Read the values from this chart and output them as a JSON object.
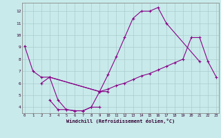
{
  "xlabel": "Windchill (Refroidissement éolien,°C)",
  "bg_color": "#c8eaea",
  "line_color": "#880088",
  "grid_color": "#aacccc",
  "xlim": [
    -0.3,
    23.3
  ],
  "ylim": [
    3.5,
    12.7
  ],
  "xticks": [
    0,
    1,
    2,
    3,
    4,
    5,
    6,
    7,
    8,
    9,
    10,
    11,
    12,
    13,
    14,
    15,
    16,
    17,
    18,
    19,
    20,
    21,
    22,
    23
  ],
  "yticks": [
    4,
    5,
    6,
    7,
    8,
    9,
    10,
    11,
    12
  ],
  "series": [
    {
      "x": [
        0,
        1,
        2,
        3,
        9,
        10,
        11,
        12,
        13,
        14,
        15,
        16,
        17,
        21
      ],
      "y": [
        9.1,
        7.0,
        6.5,
        6.5,
        5.3,
        6.7,
        8.2,
        9.8,
        11.4,
        12.0,
        12.0,
        12.3,
        11.0,
        7.8
      ]
    },
    {
      "x": [
        3,
        9,
        10,
        11,
        12,
        13,
        14,
        15,
        16,
        17,
        18,
        19,
        20,
        21,
        22,
        23
      ],
      "y": [
        6.5,
        5.3,
        5.5,
        5.8,
        6.0,
        6.3,
        6.6,
        6.8,
        7.1,
        7.4,
        7.7,
        8.0,
        9.8,
        9.8,
        7.8,
        6.5
      ]
    },
    {
      "x": [
        2,
        3,
        4,
        5,
        6,
        7,
        8,
        9,
        10
      ],
      "y": [
        6.0,
        6.5,
        4.6,
        3.8,
        3.7,
        3.7,
        4.0,
        5.3,
        5.3
      ]
    },
    {
      "x": [
        3,
        4,
        5,
        6,
        7,
        8,
        9
      ],
      "y": [
        4.6,
        3.8,
        3.8,
        3.7,
        3.7,
        4.0,
        4.0
      ]
    }
  ]
}
